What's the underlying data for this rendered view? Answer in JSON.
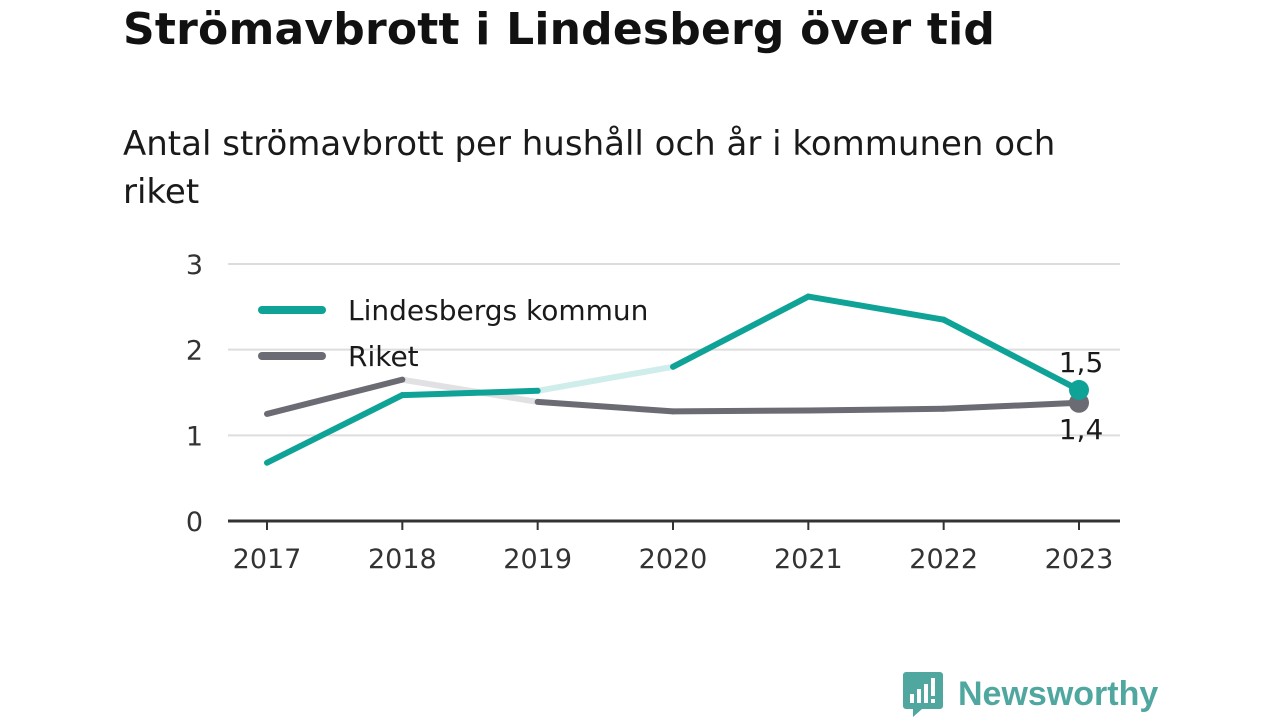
{
  "header": {
    "title": "Strömavbrott i Lindesberg över tid",
    "subtitle": "Antal strömavbrott per hushåll och år i kommunen och riket"
  },
  "brand": {
    "name": "Newsworthy",
    "icon": "newsworthy-logo-icon",
    "color": "#4fa7a0"
  },
  "chart_data": {
    "type": "line",
    "x": [
      "2017",
      "2018",
      "2019",
      "2020",
      "2021",
      "2022",
      "2023"
    ],
    "series": [
      {
        "name": "Lindesbergs kommun",
        "color": "#0fa398",
        "values": [
          0.68,
          1.47,
          1.52,
          1.8,
          2.62,
          2.35,
          1.53
        ],
        "faded_segments": [
          [
            2,
            3
          ]
        ],
        "end_label": "1,5"
      },
      {
        "name": "Riket",
        "color": "#6b6b73",
        "values": [
          1.25,
          1.65,
          1.39,
          1.28,
          1.29,
          1.31,
          1.38
        ],
        "faded_segments": [
          [
            1,
            2
          ]
        ],
        "end_label": "1,4"
      }
    ],
    "y_ticks": [
      "0",
      "1",
      "2",
      "3"
    ],
    "ylim": [
      0,
      3
    ],
    "grid": true,
    "legend": "top-left"
  }
}
